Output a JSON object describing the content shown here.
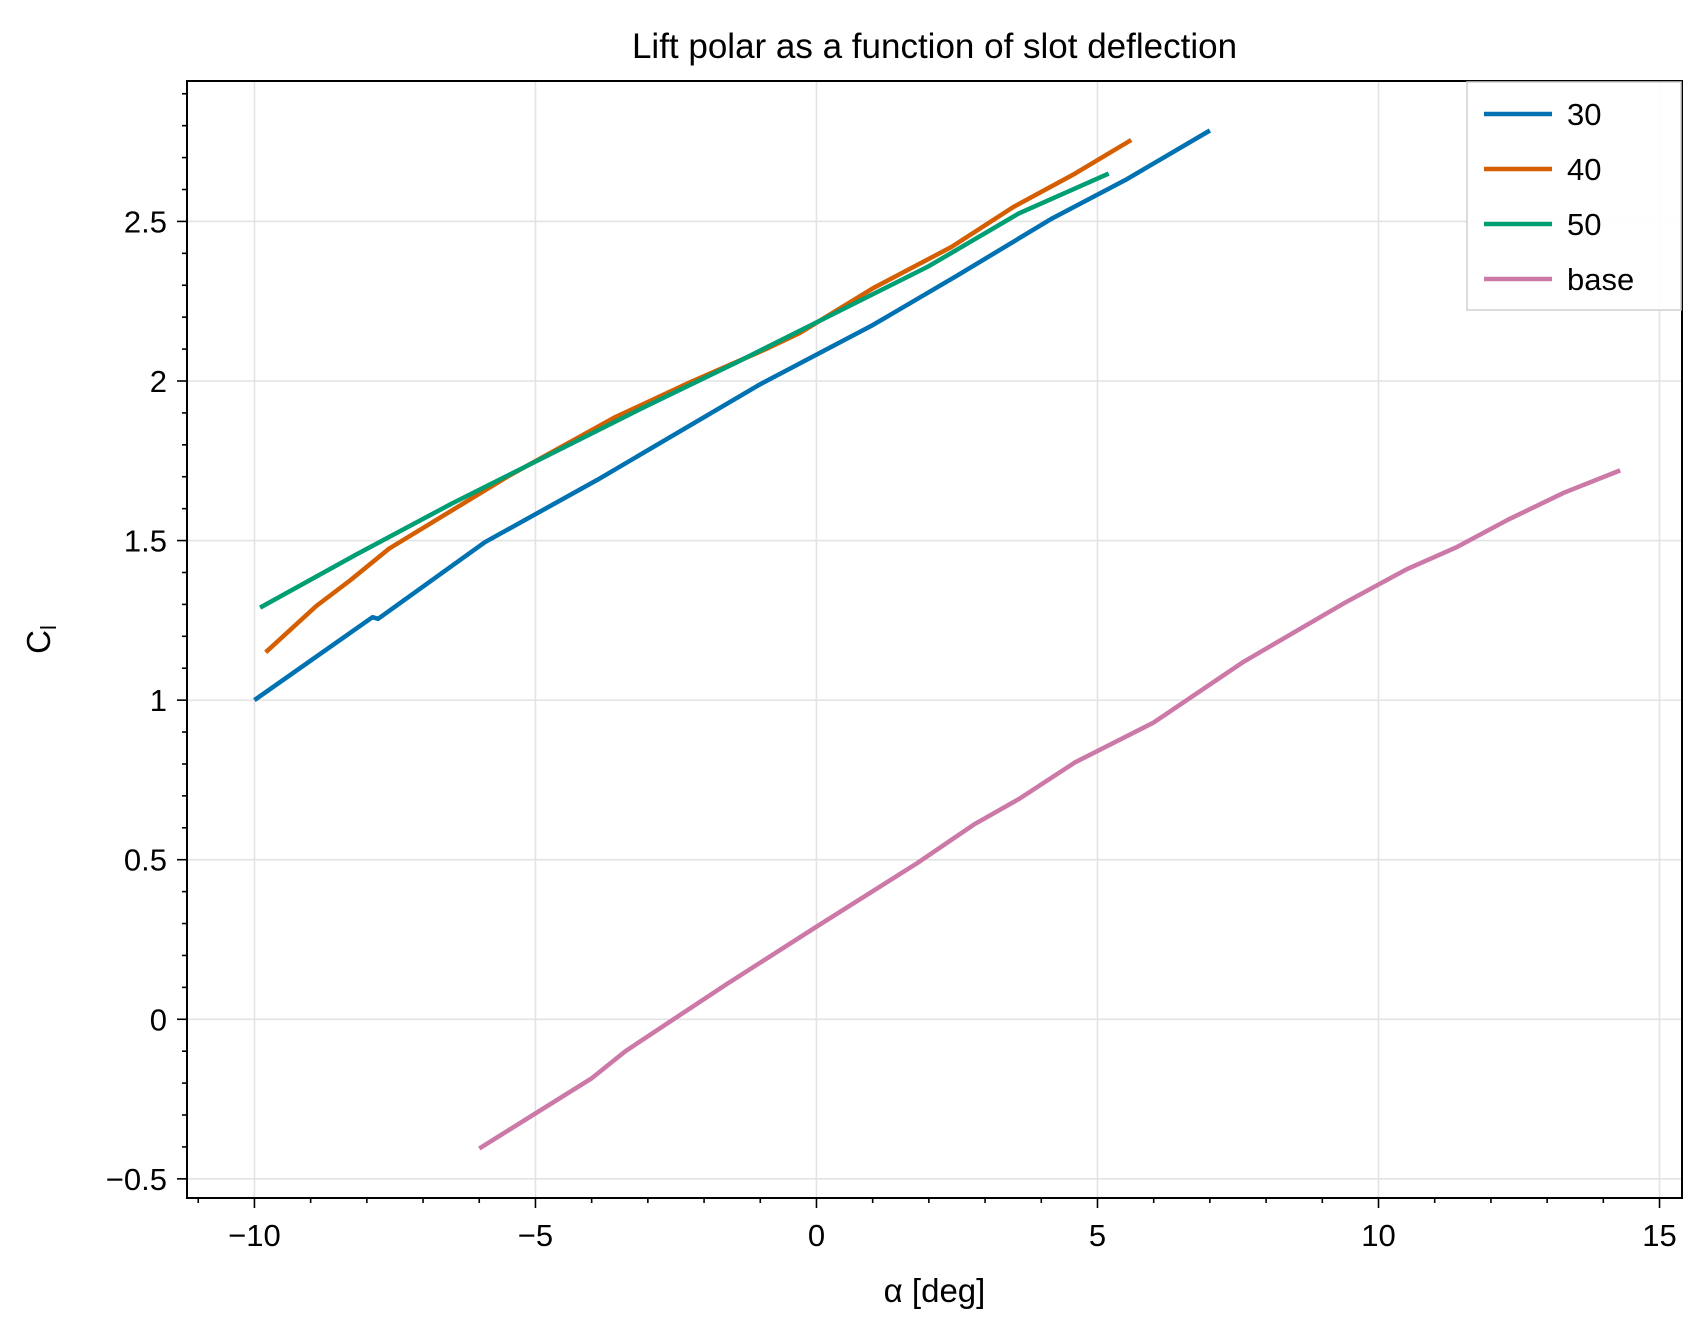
{
  "chart_data": {
    "type": "line",
    "title": "Lift polar as a function of slot deflection",
    "xlabel": "α [deg]",
    "ylabel": {
      "main": "C",
      "sub": "l"
    },
    "xlim": [
      -11.2,
      15.4
    ],
    "ylim": [
      -0.56,
      2.94
    ],
    "xticks": [
      {
        "value": -10,
        "label": "−10"
      },
      {
        "value": -5,
        "label": "−5"
      },
      {
        "value": 0,
        "label": "0"
      },
      {
        "value": 5,
        "label": "5"
      },
      {
        "value": 10,
        "label": "10"
      },
      {
        "value": 15,
        "label": "15"
      }
    ],
    "yticks": [
      {
        "value": -0.5,
        "label": "−0.5"
      },
      {
        "value": 0,
        "label": "0"
      },
      {
        "value": 0.5,
        "label": "0.5"
      },
      {
        "value": 1,
        "label": "1"
      },
      {
        "value": 1.5,
        "label": "1.5"
      },
      {
        "value": 2,
        "label": "2"
      },
      {
        "value": 2.5,
        "label": "2.5"
      }
    ],
    "x_minor_step": 1,
    "y_minor_step": 0.1,
    "grid": true,
    "legend_position": "top-right",
    "series": [
      {
        "name": "30",
        "color": "#0072b2",
        "x": [
          -10,
          -7.9,
          -7.8,
          -5.9,
          -3.9,
          -1.0,
          1.0,
          2.5,
          4.2,
          5.5,
          7.0
        ],
        "y": [
          1.0,
          1.26,
          1.255,
          1.495,
          1.69,
          1.99,
          2.175,
          2.33,
          2.51,
          2.63,
          2.785
        ]
      },
      {
        "name": "40",
        "color": "#d55e00",
        "x": [
          -9.8,
          -8.9,
          -8.3,
          -7.6,
          -5.5,
          -3.6,
          -2.2,
          -0.9,
          -0.3,
          1.0,
          2.4,
          3.5,
          4.6,
          5.6
        ],
        "y": [
          1.15,
          1.295,
          1.375,
          1.475,
          1.7,
          1.885,
          2.0,
          2.1,
          2.15,
          2.29,
          2.42,
          2.545,
          2.65,
          2.755
        ]
      },
      {
        "name": "50",
        "color": "#009e73",
        "x": [
          -9.9,
          -8.2,
          -6.5,
          -4.8,
          -3.1,
          -1.4,
          0.3,
          2.0,
          3.6,
          5.2
        ],
        "y": [
          1.29,
          1.455,
          1.615,
          1.765,
          1.915,
          2.06,
          2.21,
          2.36,
          2.525,
          2.65
        ]
      },
      {
        "name": "base",
        "color": "#cc79a7",
        "x": [
          -6.0,
          -4.0,
          -3.4,
          -1.6,
          0.0,
          1.8,
          2.8,
          3.6,
          4.6,
          6.0,
          7.6,
          9.4,
          10.5,
          11.4,
          12.3,
          13.3,
          14.3
        ],
        "y": [
          -0.405,
          -0.185,
          -0.1,
          0.11,
          0.29,
          0.49,
          0.61,
          0.69,
          0.805,
          0.93,
          1.12,
          1.305,
          1.41,
          1.48,
          1.565,
          1.65,
          1.72
        ]
      }
    ]
  }
}
